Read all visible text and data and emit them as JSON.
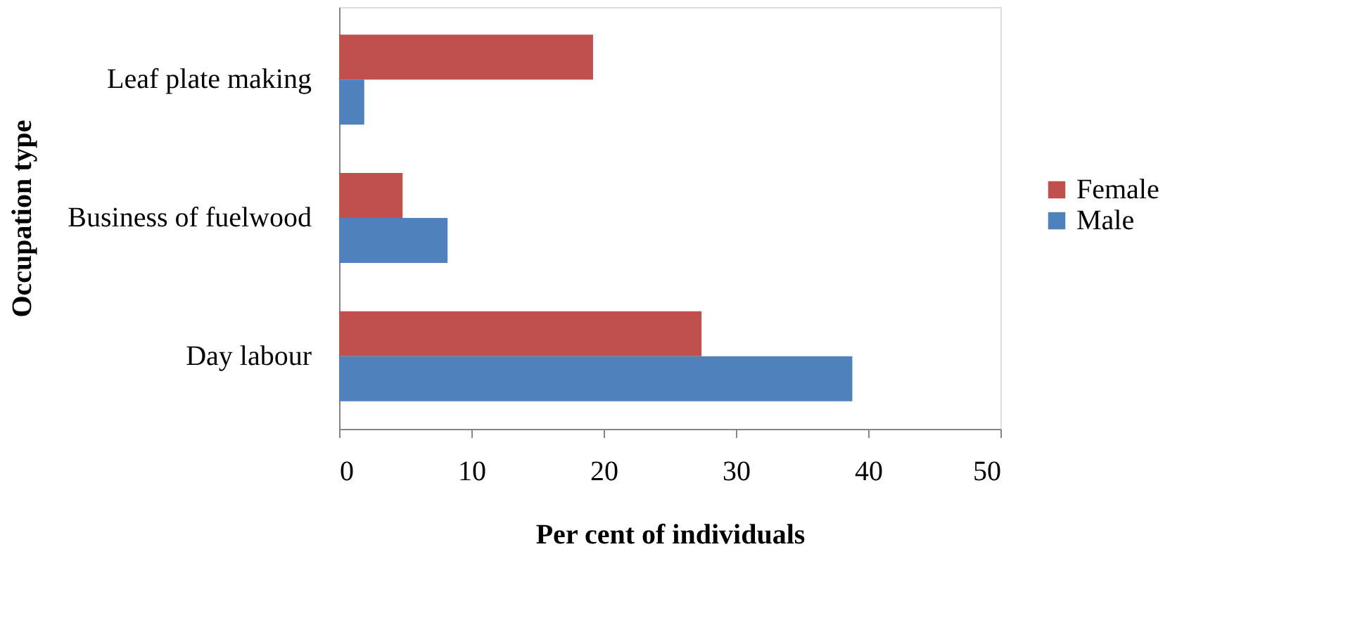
{
  "chart_data": {
    "type": "bar",
    "orientation": "horizontal",
    "xlabel": "Per cent of individuals",
    "ylabel": "Occupation type",
    "categories": [
      "Leaf plate making",
      "Business of fuelwood",
      "Day labour"
    ],
    "series": [
      {
        "name": "Female",
        "color": "#c0504d",
        "values": [
          19.2,
          4.8,
          27.4
        ]
      },
      {
        "name": "Male",
        "color": "#4f81bd",
        "values": [
          1.9,
          8.2,
          38.8
        ]
      }
    ],
    "xlim": [
      0,
      50
    ],
    "xticks": [
      0,
      10,
      20,
      30,
      40,
      50
    ],
    "grid": false,
    "legend": "right"
  }
}
